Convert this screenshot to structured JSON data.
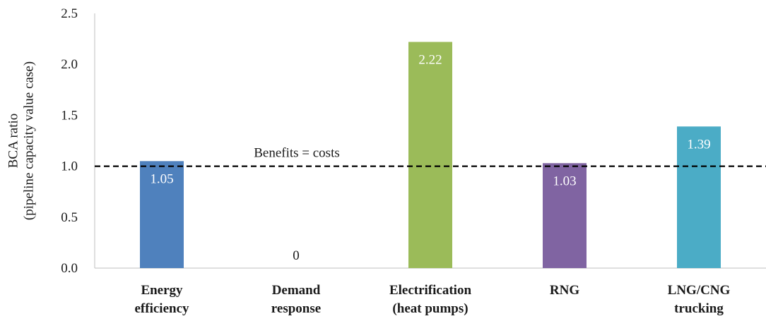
{
  "chart_data": {
    "type": "bar",
    "title": "",
    "ylabel_lines": [
      "BCA ratio",
      "(pipeline capacity value case)"
    ],
    "xlabel": "",
    "categories": [
      [
        "Energy",
        "efficiency"
      ],
      [
        "Demand",
        "response"
      ],
      [
        "Electrification",
        "(heat pumps)"
      ],
      [
        "RNG"
      ],
      [
        "LNG/CNG",
        "trucking"
      ]
    ],
    "values": [
      1.05,
      0,
      2.22,
      1.03,
      1.39
    ],
    "data_labels": [
      "1.05",
      "0",
      "2.22",
      "1.03",
      "1.39"
    ],
    "colors": [
      "#4f81bd",
      "#4f81bd",
      "#9bbb59",
      "#8064a2",
      "#4bacc6"
    ],
    "ylim": [
      0,
      2.5
    ],
    "yticks": [
      "0.0",
      "0.5",
      "1.0",
      "1.5",
      "2.0",
      "2.5"
    ],
    "grid": false,
    "reference_line": {
      "value": 1.0,
      "label": "Benefits = costs",
      "style": "dashed",
      "color": "#000000"
    }
  }
}
